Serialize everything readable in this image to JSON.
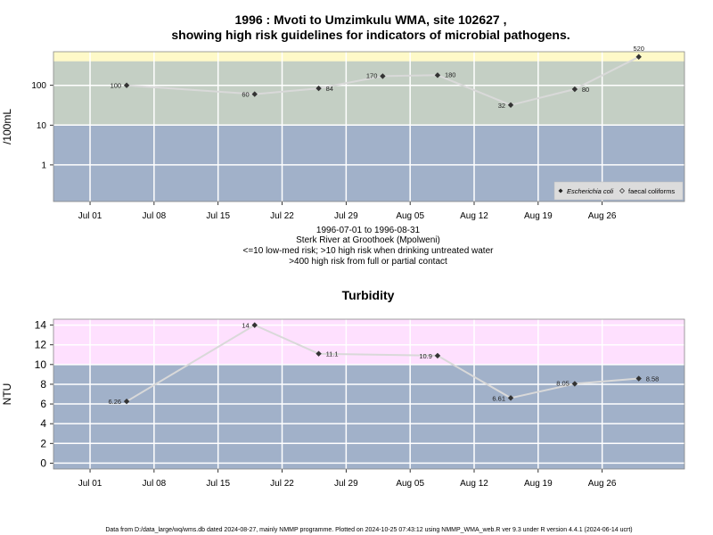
{
  "figure": {
    "title_line1": "1996 : Mvoti to Umzimkulu WMA, site 102627 ,",
    "title_line2": "showing high risk guidelines for indicators of microbial pathogens.",
    "footer": "Data from D:/data_large/wq/wms.db dated 2024-08-27, mainly NMMP programme. Plotted on 2024-10-25 07:43:12 using NMMP_WMA_web.R ver 9.3 under R version 4.4.1 (2024-06-14 ucrt)"
  },
  "colors": {
    "background_low": "#a1b1c9",
    "band_high_micro": "#c4cfc4",
    "band_full_contact": "#fef9c8",
    "band_high_turbidity": "#fee0fe",
    "grid": "#ffffff",
    "series_line": "#d9d9d9",
    "marker": "#333333"
  },
  "chart_data": [
    {
      "type": "line",
      "ylabel": "/100mL",
      "yscale": "log",
      "ylim": [
        0.12,
        700
      ],
      "yticks": [
        1,
        10,
        100
      ],
      "ytick_labels": [
        "1",
        "10",
        "100"
      ],
      "xlim": [
        "1996-06-27",
        "1996-09-04"
      ],
      "xticks": [
        "1996-07-01",
        "1996-07-08",
        "1996-07-15",
        "1996-07-22",
        "1996-07-29",
        "1996-08-05",
        "1996-08-12",
        "1996-08-19",
        "1996-08-26"
      ],
      "xtick_labels": [
        "Jul 01",
        "Jul 08",
        "Jul 15",
        "Jul 22",
        "Jul 29",
        "Aug 05",
        "Aug 12",
        "Aug 19",
        "Aug 26"
      ],
      "bands": [
        {
          "from": 10,
          "to": 400,
          "color": "#c4cfc4"
        },
        {
          "from": 400,
          "to": 700,
          "color": "#fef9c8"
        }
      ],
      "grid": true,
      "legend_position": "bottom-right",
      "legend": [
        {
          "name": "Escherichia coli",
          "marker": "filled-diamond"
        },
        {
          "name": "faecal coliforms",
          "marker": "open-diamond"
        }
      ],
      "series": [
        {
          "name": "Escherichia coli",
          "x": [
            "1996-07-05",
            "1996-07-19",
            "1996-07-26",
            "1996-08-02",
            "1996-08-08",
            "1996-08-16",
            "1996-08-23",
            "1996-08-30"
          ],
          "values": [
            100,
            60,
            84,
            170,
            180,
            32,
            80,
            520
          ],
          "value_labels": [
            "100",
            "60",
            "84",
            "170",
            "180",
            "32",
            "80",
            "520"
          ]
        }
      ],
      "notes": [
        "1996-07-01 to 1996-08-31",
        "Sterk River at Groothoek (Mpolweni)",
        "<=10 low-med risk; >10 high risk when drinking untreated water",
        ">400 high risk from full or partial contact"
      ]
    },
    {
      "type": "line",
      "title": "Turbidity",
      "ylabel": "NTU",
      "ylim": [
        -0.6,
        14.6
      ],
      "yticks": [
        0,
        2,
        4,
        6,
        8,
        10,
        12,
        14
      ],
      "ytick_labels": [
        "0",
        "2",
        "4",
        "6",
        "8",
        "10",
        "12",
        "14"
      ],
      "xlim": [
        "1996-06-27",
        "1996-09-04"
      ],
      "xticks": [
        "1996-07-01",
        "1996-07-08",
        "1996-07-15",
        "1996-07-22",
        "1996-07-29",
        "1996-08-05",
        "1996-08-12",
        "1996-08-19",
        "1996-08-26"
      ],
      "xtick_labels": [
        "Jul 01",
        "Jul 08",
        "Jul 15",
        "Jul 22",
        "Jul 29",
        "Aug 05",
        "Aug 12",
        "Aug 19",
        "Aug 26"
      ],
      "bands": [
        {
          "from": 10,
          "to": 14.6,
          "color": "#fee0fe"
        }
      ],
      "grid": true,
      "series": [
        {
          "x": [
            "1996-07-05",
            "1996-07-19",
            "1996-07-26",
            "1996-08-08",
            "1996-08-16",
            "1996-08-23",
            "1996-08-30"
          ],
          "values": [
            6.26,
            14,
            11.1,
            10.9,
            6.61,
            8.05,
            8.58
          ],
          "value_labels": [
            "6.26",
            "14",
            "11.1",
            "10.9",
            "6.61",
            "8.05",
            "8.58"
          ]
        }
      ]
    }
  ]
}
